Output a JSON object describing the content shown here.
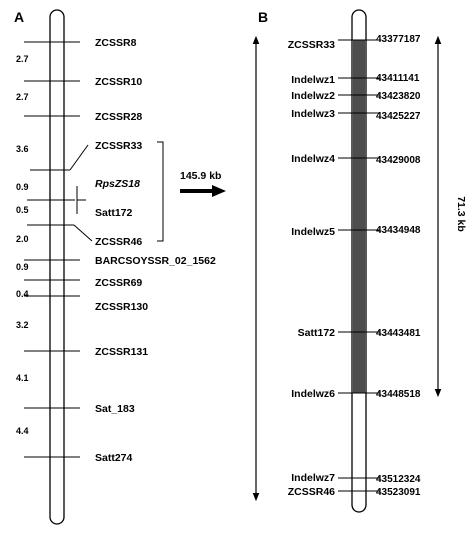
{
  "panel_a": {
    "letter": "A",
    "markers": [
      {
        "name": "ZCSSR8",
        "italic": false
      },
      {
        "name": "ZCSSR10",
        "italic": false
      },
      {
        "name": "ZCSSR28",
        "italic": false
      },
      {
        "name": "ZCSSR33",
        "italic": false
      },
      {
        "name": "RpsZS18",
        "italic": true
      },
      {
        "name": "Satt172",
        "italic": false
      },
      {
        "name": "ZCSSR46",
        "italic": false
      },
      {
        "name": "BARCSOYSSR_02_1562",
        "italic": false
      },
      {
        "name": "ZCSSR69",
        "italic": false
      },
      {
        "name": "ZCSSR130",
        "italic": false
      },
      {
        "name": "ZCSSR131",
        "italic": false
      },
      {
        "name": "Sat_183",
        "italic": false
      },
      {
        "name": "Satt274",
        "italic": false
      }
    ],
    "distances": [
      "2.7",
      "2.7",
      "3.6",
      "0.9",
      "0.5",
      "2.0",
      "0.9",
      "0.4",
      "3.2",
      "4.1",
      "4.4"
    ],
    "interval_label": "145.9 kb"
  },
  "panel_b": {
    "letter": "B",
    "markers": [
      {
        "name": "ZCSSR33",
        "position": "43377187"
      },
      {
        "name": "Indelwz1",
        "position": "43411141"
      },
      {
        "name": "Indelwz2",
        "position": "43423820"
      },
      {
        "name": "Indelwz3",
        "position": "43425227"
      },
      {
        "name": "Indelwz4",
        "position": "43429008"
      },
      {
        "name": "Indelwz5",
        "position": "43434948"
      },
      {
        "name": "Satt172",
        "position": "43443481"
      },
      {
        "name": "Indelwz6",
        "position": "43448518"
      },
      {
        "name": "Indelwz7",
        "position": "43512324"
      },
      {
        "name": "ZCSSR46",
        "position": "43523091"
      }
    ],
    "interval_label": "71.3 kb"
  }
}
